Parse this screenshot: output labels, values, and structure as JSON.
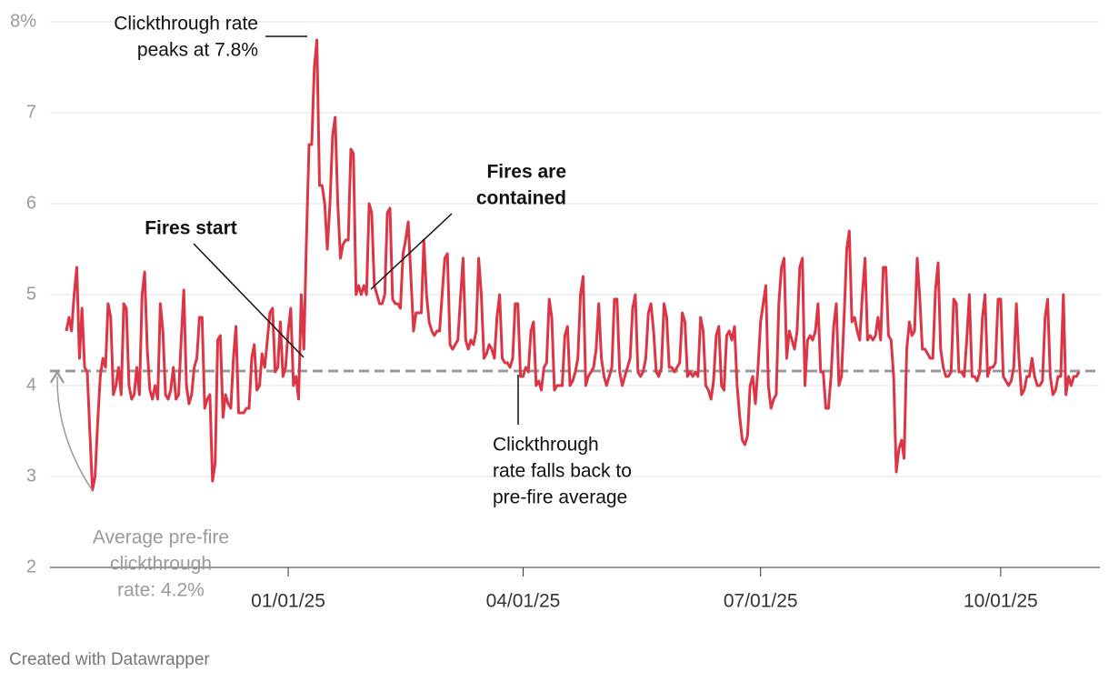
{
  "chart_data": {
    "type": "line",
    "x": [
      "2024-10-08",
      "2024-10-09",
      "2024-10-10",
      "2024-10-11",
      "2024-10-12",
      "2024-10-13",
      "2024-10-14",
      "2024-10-15",
      "2024-10-16",
      "2024-10-17",
      "2024-10-18",
      "2024-10-19",
      "2024-10-20",
      "2024-10-21",
      "2024-10-22",
      "2024-10-23",
      "2024-10-24",
      "2024-10-25",
      "2024-10-26",
      "2024-10-27",
      "2024-10-28",
      "2024-10-29",
      "2024-10-30",
      "2024-10-31",
      "2024-11-01",
      "2024-11-02",
      "2024-11-03",
      "2024-11-04",
      "2024-11-05",
      "2024-11-06",
      "2024-11-07",
      "2024-11-08",
      "2024-11-09",
      "2024-11-10",
      "2024-11-11",
      "2024-11-12",
      "2024-11-13",
      "2024-11-14",
      "2024-11-15",
      "2024-11-16",
      "2024-11-17",
      "2024-11-18",
      "2024-11-19",
      "2024-11-20",
      "2024-11-21",
      "2024-11-22",
      "2024-11-23",
      "2024-11-24",
      "2024-11-25",
      "2024-11-26",
      "2024-11-27",
      "2024-11-28",
      "2024-11-29",
      "2024-11-30",
      "2024-12-01",
      "2024-12-02",
      "2024-12-03",
      "2024-12-04",
      "2024-12-05",
      "2024-12-06",
      "2024-12-07",
      "2024-12-08",
      "2024-12-09",
      "2024-12-10",
      "2024-12-11",
      "2024-12-12",
      "2024-12-13",
      "2024-12-14",
      "2024-12-15",
      "2024-12-16",
      "2024-12-17",
      "2024-12-18",
      "2024-12-19",
      "2024-12-20",
      "2024-12-21",
      "2024-12-22",
      "2024-12-23",
      "2024-12-24",
      "2024-12-25",
      "2024-12-26",
      "2024-12-27",
      "2024-12-28",
      "2024-12-29",
      "2024-12-30",
      "2024-12-31",
      "2025-01-01",
      "2025-01-02",
      "2025-01-03",
      "2025-01-04",
      "2025-01-05",
      "2025-01-06",
      "2025-01-07",
      "2025-01-08",
      "2025-01-09",
      "2025-01-10",
      "2025-01-11",
      "2025-01-12",
      "2025-01-13",
      "2025-01-14",
      "2025-01-15",
      "2025-01-16",
      "2025-01-17",
      "2025-01-18",
      "2025-01-19",
      "2025-01-20",
      "2025-01-21",
      "2025-01-22",
      "2025-01-23",
      "2025-01-24",
      "2025-01-25",
      "2025-01-26",
      "2025-01-27",
      "2025-01-28",
      "2025-01-29",
      "2025-01-30",
      "2025-01-31",
      "2025-02-01",
      "2025-02-02",
      "2025-02-03",
      "2025-02-04",
      "2025-02-05",
      "2025-02-06",
      "2025-02-07",
      "2025-02-08",
      "2025-02-09",
      "2025-02-10",
      "2025-02-11",
      "2025-02-12",
      "2025-02-13",
      "2025-02-14",
      "2025-02-15",
      "2025-02-16",
      "2025-02-17",
      "2025-02-18",
      "2025-02-19",
      "2025-02-20",
      "2025-02-21",
      "2025-02-22",
      "2025-02-23",
      "2025-02-24",
      "2025-02-25",
      "2025-02-26",
      "2025-02-27",
      "2025-02-28",
      "2025-03-01",
      "2025-03-02",
      "2025-03-03",
      "2025-03-04",
      "2025-03-05",
      "2025-03-06",
      "2025-03-07",
      "2025-03-08",
      "2025-03-09",
      "2025-03-10",
      "2025-03-11",
      "2025-03-12",
      "2025-03-13",
      "2025-03-14",
      "2025-03-15",
      "2025-03-16",
      "2025-03-17",
      "2025-03-18",
      "2025-03-19",
      "2025-03-20",
      "2025-03-21",
      "2025-03-22",
      "2025-03-23",
      "2025-03-24",
      "2025-03-25",
      "2025-03-26",
      "2025-03-27",
      "2025-03-28",
      "2025-03-29",
      "2025-03-30",
      "2025-03-31",
      "2025-04-01",
      "2025-04-02",
      "2025-04-03",
      "2025-04-04",
      "2025-04-05",
      "2025-04-06",
      "2025-04-07",
      "2025-04-08",
      "2025-04-09",
      "2025-04-10",
      "2025-04-11",
      "2025-04-12",
      "2025-04-13",
      "2025-04-14",
      "2025-04-15",
      "2025-04-16",
      "2025-04-17",
      "2025-04-18",
      "2025-04-19",
      "2025-04-20",
      "2025-04-21",
      "2025-04-22",
      "2025-04-23",
      "2025-04-24",
      "2025-04-25",
      "2025-04-26",
      "2025-04-27",
      "2025-04-28",
      "2025-04-29",
      "2025-04-30",
      "2025-05-01",
      "2025-05-02",
      "2025-05-03",
      "2025-05-04",
      "2025-05-05",
      "2025-05-06",
      "2025-05-07",
      "2025-05-08",
      "2025-05-09",
      "2025-05-10",
      "2025-05-11",
      "2025-05-12",
      "2025-05-13",
      "2025-05-14",
      "2025-05-15",
      "2025-05-16",
      "2025-05-17",
      "2025-05-18",
      "2025-05-19",
      "2025-05-20",
      "2025-05-21",
      "2025-05-22",
      "2025-05-23",
      "2025-05-24",
      "2025-05-25",
      "2025-05-26",
      "2025-05-27",
      "2025-05-28",
      "2025-05-29",
      "2025-05-30",
      "2025-05-31",
      "2025-06-01",
      "2025-06-02",
      "2025-06-03",
      "2025-06-04",
      "2025-06-05",
      "2025-06-06",
      "2025-06-07",
      "2025-06-08",
      "2025-06-09",
      "2025-06-10",
      "2025-06-11",
      "2025-06-12",
      "2025-06-13",
      "2025-06-14",
      "2025-06-15",
      "2025-06-16",
      "2025-06-17",
      "2025-06-18",
      "2025-06-19",
      "2025-06-20",
      "2025-06-21",
      "2025-06-22",
      "2025-06-23",
      "2025-06-24",
      "2025-06-25",
      "2025-06-26",
      "2025-06-27",
      "2025-06-28",
      "2025-06-29",
      "2025-06-30",
      "2025-07-01",
      "2025-07-02",
      "2025-07-03",
      "2025-07-04",
      "2025-07-05",
      "2025-07-06",
      "2025-07-07",
      "2025-07-08",
      "2025-07-09",
      "2025-07-10",
      "2025-07-11",
      "2025-07-12",
      "2025-07-13",
      "2025-07-14",
      "2025-07-15",
      "2025-07-16",
      "2025-07-17",
      "2025-07-18",
      "2025-07-19",
      "2025-07-20",
      "2025-07-21",
      "2025-07-22",
      "2025-07-23",
      "2025-07-24",
      "2025-07-25",
      "2025-07-26",
      "2025-07-27",
      "2025-07-28",
      "2025-07-29",
      "2025-07-30",
      "2025-07-31",
      "2025-08-01",
      "2025-08-02",
      "2025-08-03",
      "2025-08-04",
      "2025-08-05",
      "2025-08-06",
      "2025-08-07",
      "2025-08-08",
      "2025-08-09",
      "2025-08-10",
      "2025-08-11",
      "2025-08-12",
      "2025-08-13",
      "2025-08-14",
      "2025-08-15",
      "2025-08-16",
      "2025-08-17",
      "2025-08-18",
      "2025-08-19",
      "2025-08-20",
      "2025-08-21",
      "2025-08-22",
      "2025-08-23",
      "2025-08-24",
      "2025-08-25",
      "2025-08-26",
      "2025-08-27",
      "2025-08-28",
      "2025-08-29",
      "2025-08-30",
      "2025-08-31",
      "2025-09-01",
      "2025-09-02",
      "2025-09-03",
      "2025-09-04",
      "2025-09-05",
      "2025-09-06",
      "2025-09-07",
      "2025-09-08",
      "2025-09-09",
      "2025-09-10",
      "2025-09-11",
      "2025-09-12",
      "2025-09-13",
      "2025-09-14",
      "2025-09-15",
      "2025-09-16",
      "2025-09-17",
      "2025-09-18",
      "2025-09-19",
      "2025-09-20",
      "2025-09-21",
      "2025-09-22",
      "2025-09-23",
      "2025-09-24",
      "2025-09-25",
      "2025-09-26",
      "2025-09-27",
      "2025-09-28",
      "2025-09-29",
      "2025-09-30",
      "2025-10-01",
      "2025-10-02",
      "2025-10-03",
      "2025-10-04",
      "2025-10-05",
      "2025-10-06",
      "2025-10-07",
      "2025-10-08",
      "2025-10-09",
      "2025-10-10",
      "2025-10-11",
      "2025-10-12",
      "2025-10-13",
      "2025-10-14",
      "2025-10-15",
      "2025-10-16",
      "2025-10-17",
      "2025-10-18",
      "2025-10-19",
      "2025-10-20",
      "2025-10-21",
      "2025-10-22",
      "2025-10-23",
      "2025-10-24",
      "2025-10-25",
      "2025-10-26",
      "2025-10-27",
      "2025-10-28",
      "2025-10-29",
      "2025-10-30",
      "2025-10-31"
    ],
    "series": [
      {
        "color": "#dc3545",
        "values": [
          4.6,
          4.75,
          4.6,
          5.0,
          5.3,
          4.3,
          4.85,
          4.2,
          4.15,
          3.5,
          2.85,
          3.0,
          3.6,
          4.1,
          4.3,
          4.2,
          4.9,
          4.75,
          3.9,
          4.0,
          4.2,
          3.9,
          4.9,
          4.85,
          4.0,
          3.85,
          3.9,
          4.2,
          3.9,
          5.0,
          5.25,
          4.4,
          3.95,
          3.85,
          4.0,
          3.85,
          4.9,
          4.6,
          3.9,
          3.85,
          3.95,
          4.2,
          3.85,
          3.9,
          4.5,
          5.05,
          4.0,
          3.8,
          3.9,
          4.2,
          4.3,
          4.75,
          4.75,
          3.75,
          3.85,
          3.9,
          2.95,
          3.15,
          4.5,
          4.55,
          3.65,
          3.9,
          3.8,
          3.75,
          4.3,
          4.65,
          3.7,
          3.7,
          3.7,
          3.75,
          3.75,
          4.3,
          4.45,
          3.95,
          4.0,
          4.35,
          4.2,
          4.5,
          4.8,
          4.85,
          4.15,
          4.2,
          4.7,
          4.1,
          4.2,
          4.6,
          4.85,
          4.0,
          4.1,
          3.85,
          5.0,
          4.4,
          5.6,
          6.65,
          6.65,
          7.5,
          7.8,
          6.2,
          6.2,
          6.0,
          5.5,
          6.0,
          6.75,
          6.95,
          6.0,
          5.4,
          5.55,
          5.6,
          5.6,
          6.6,
          6.55,
          5.0,
          5.1,
          5.0,
          5.1,
          5.0,
          6.0,
          5.9,
          5.1,
          5.0,
          4.9,
          4.9,
          5.0,
          5.9,
          5.95,
          4.95,
          4.9,
          4.9,
          4.85,
          5.45,
          5.6,
          5.8,
          5.2,
          4.6,
          4.8,
          4.8,
          4.8,
          5.6,
          5.0,
          4.7,
          4.6,
          4.55,
          4.6,
          4.6,
          5.0,
          5.4,
          5.45,
          4.45,
          4.4,
          4.45,
          4.5,
          4.95,
          5.4,
          4.5,
          4.4,
          4.5,
          4.45,
          4.6,
          5.4,
          5.0,
          4.3,
          4.35,
          4.45,
          4.4,
          4.3,
          4.75,
          5.0,
          4.3,
          4.25,
          4.25,
          4.2,
          4.3,
          4.9,
          4.9,
          4.1,
          4.1,
          4.2,
          4.15,
          4.6,
          4.7,
          4.0,
          4.05,
          3.95,
          4.2,
          4.25,
          4.95,
          4.75,
          3.95,
          4.0,
          4.0,
          4.0,
          4.55,
          4.65,
          4.0,
          4.05,
          4.15,
          4.3,
          5.0,
          5.2,
          4.0,
          4.1,
          4.15,
          4.2,
          4.4,
          4.9,
          4.3,
          4.1,
          4.0,
          4.1,
          4.2,
          4.95,
          4.95,
          4.15,
          4.0,
          4.1,
          4.2,
          4.3,
          4.85,
          5.0,
          4.15,
          4.1,
          4.15,
          4.3,
          4.8,
          4.9,
          4.6,
          4.15,
          4.1,
          4.2,
          4.9,
          4.75,
          4.2,
          4.2,
          4.15,
          4.2,
          4.25,
          4.8,
          4.7,
          4.1,
          4.15,
          4.1,
          4.15,
          4.1,
          4.75,
          4.6,
          4.0,
          3.95,
          3.85,
          4.05,
          4.55,
          4.65,
          4.0,
          3.95,
          4.55,
          4.6,
          4.5,
          4.65,
          4.0,
          3.65,
          3.4,
          3.35,
          3.45,
          4.0,
          4.1,
          3.8,
          4.2,
          4.7,
          4.9,
          5.1,
          4.0,
          3.75,
          3.85,
          3.9,
          4.9,
          5.3,
          5.4,
          4.3,
          4.6,
          4.5,
          4.4,
          4.6,
          5.3,
          5.4,
          4.0,
          4.5,
          4.55,
          4.5,
          4.6,
          4.9,
          4.15,
          4.15,
          3.75,
          3.75,
          4.1,
          4.65,
          4.9,
          4.0,
          4.1,
          4.75,
          5.5,
          5.7,
          4.7,
          4.75,
          4.6,
          4.5,
          5.0,
          5.4,
          4.5,
          4.55,
          4.5,
          4.55,
          4.75,
          4.5,
          5.3,
          5.3,
          4.55,
          4.5,
          4.1,
          3.05,
          3.3,
          3.4,
          3.2,
          4.4,
          4.7,
          4.55,
          4.6,
          5.4,
          4.95,
          4.4,
          4.4,
          4.35,
          4.3,
          4.3,
          5.05,
          5.35,
          4.4,
          4.2,
          4.1,
          4.1,
          4.15,
          4.95,
          4.9,
          4.15,
          4.15,
          4.1,
          4.5,
          5.0,
          4.1,
          4.1,
          4.05,
          4.15,
          4.75,
          5.0,
          4.1,
          4.2,
          4.2,
          4.25,
          4.95,
          4.95,
          4.1,
          4.05,
          4.0,
          4.05,
          4.2,
          4.9,
          4.3,
          3.9,
          3.95,
          4.1,
          4.1,
          4.3,
          4.1,
          4.0,
          4.0,
          4.05,
          4.75,
          4.95,
          4.1,
          3.9,
          3.95,
          4.1,
          4.1,
          5.0,
          3.9,
          4.1,
          4.0,
          4.1,
          4.1,
          4.15
        ]
      }
    ],
    "xlim": [
      "2024-10-08",
      "2025-10-31"
    ],
    "xticks": [
      {
        "value": "2025-01-01",
        "label": "01/01/25"
      },
      {
        "value": "2025-04-01",
        "label": "04/01/25"
      },
      {
        "value": "2025-07-01",
        "label": "07/01/25"
      },
      {
        "value": "2025-10-01",
        "label": "10/01/25"
      }
    ],
    "ylim": [
      2,
      8
    ],
    "yticks": [
      2,
      3,
      4,
      5,
      6,
      7,
      {
        "value": 8,
        "label": "8%"
      }
    ],
    "grid": true,
    "reference_line": 4.16,
    "annotations": [
      {
        "lines": [
          "Clickthrough rate",
          "peaks at 7.8%"
        ]
      },
      {
        "lines": [
          "Fires start"
        ]
      },
      {
        "lines": [
          "Fires are",
          "contained"
        ]
      },
      {
        "lines": [
          "Clickthrough",
          "rate falls back to",
          "pre-fire average"
        ]
      },
      {
        "lines": [
          "Average pre-fire",
          "clickthrough",
          "rate: 4.2%"
        ]
      }
    ],
    "footer": "Created with Datawrapper"
  }
}
